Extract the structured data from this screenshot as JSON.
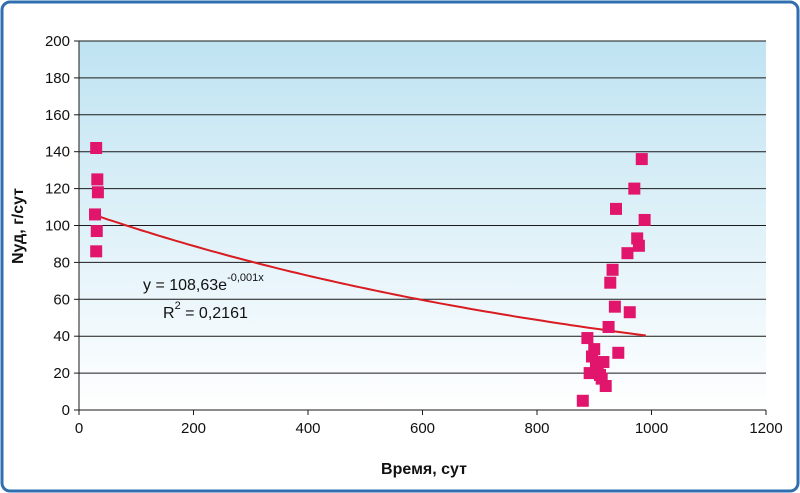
{
  "colors": {
    "frame_border": "#2f6fb0",
    "plot_top": "#bfe3f2",
    "plot_bottom": "#ffffff",
    "marker": "#e0156b",
    "trendline": "#d81c22"
  },
  "chart_data": {
    "type": "scatter",
    "xlabel": "Время, сут",
    "ylabel": "Nуд, г/сут",
    "xlim": [
      0,
      1200
    ],
    "ylim": [
      0,
      200
    ],
    "x_ticks": [
      0,
      200,
      400,
      600,
      800,
      1000,
      1200
    ],
    "y_ticks": [
      0,
      20,
      40,
      60,
      80,
      100,
      120,
      140,
      160,
      180,
      200
    ],
    "grid": "horizontal",
    "points": [
      {
        "x": 30,
        "y": 142
      },
      {
        "x": 32,
        "y": 125
      },
      {
        "x": 33,
        "y": 118
      },
      {
        "x": 28,
        "y": 106
      },
      {
        "x": 31,
        "y": 97
      },
      {
        "x": 30,
        "y": 86
      },
      {
        "x": 880,
        "y": 5
      },
      {
        "x": 888,
        "y": 39
      },
      {
        "x": 892,
        "y": 20
      },
      {
        "x": 896,
        "y": 29
      },
      {
        "x": 900,
        "y": 33
      },
      {
        "x": 903,
        "y": 24
      },
      {
        "x": 906,
        "y": 22
      },
      {
        "x": 910,
        "y": 19
      },
      {
        "x": 913,
        "y": 17
      },
      {
        "x": 916,
        "y": 26
      },
      {
        "x": 920,
        "y": 13
      },
      {
        "x": 925,
        "y": 45
      },
      {
        "x": 928,
        "y": 69
      },
      {
        "x": 932,
        "y": 76
      },
      {
        "x": 936,
        "y": 56
      },
      {
        "x": 938,
        "y": 109
      },
      {
        "x": 942,
        "y": 31
      },
      {
        "x": 958,
        "y": 85
      },
      {
        "x": 962,
        "y": 53
      },
      {
        "x": 970,
        "y": 120
      },
      {
        "x": 975,
        "y": 93
      },
      {
        "x": 978,
        "y": 89
      },
      {
        "x": 983,
        "y": 136
      },
      {
        "x": 988,
        "y": 103
      }
    ],
    "trendline": {
      "type": "exponential",
      "a": 108.63,
      "b": -0.001,
      "x_range": [
        30,
        990
      ],
      "equation_main": "y = 108,63e",
      "equation_exponent": "-0,001x",
      "r2_main": "R",
      "r2_exponent": "2",
      "r2_value": " = 0,2161"
    }
  }
}
